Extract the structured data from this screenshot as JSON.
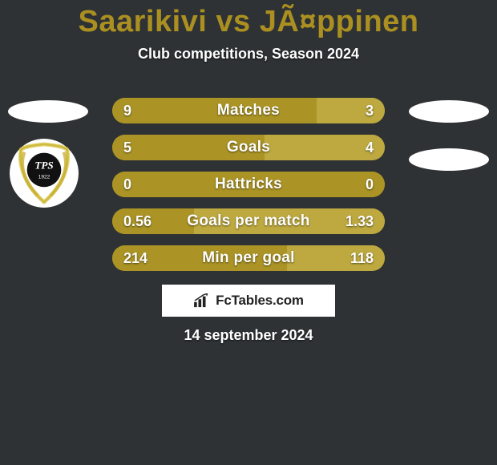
{
  "background_color": "#2e3234",
  "accent_color": "#ab9425",
  "right_fill_color": "#bda93f",
  "title": {
    "left": "Saarikivi",
    "vs": "vs",
    "right": "JÃ¤ppinen",
    "color": "#ab8f20",
    "fontsize": 38
  },
  "subtitle": "Club competitions, Season 2024",
  "bars": [
    {
      "label": "Matches",
      "left_value": "9",
      "right_value": "3",
      "left_pct": 75,
      "right_pct": 25,
      "left_color": "#ab9425",
      "right_color": "#bda93f"
    },
    {
      "label": "Goals",
      "left_value": "5",
      "right_value": "4",
      "left_pct": 56,
      "right_pct": 44,
      "left_color": "#ab9425",
      "right_color": "#bda93f"
    },
    {
      "label": "Hattricks",
      "left_value": "0",
      "right_value": "0",
      "left_pct": 100,
      "right_pct": 0,
      "left_color": "#ab9425",
      "right_color": "#bda93f"
    },
    {
      "label": "Goals per match",
      "left_value": "0.56",
      "right_value": "1.33",
      "left_pct": 30,
      "right_pct": 70,
      "left_color": "#ab9425",
      "right_color": "#bda93f"
    },
    {
      "label": "Min per goal",
      "left_value": "214",
      "right_value": "118",
      "left_pct": 64,
      "right_pct": 36,
      "left_color": "#ab9425",
      "right_color": "#bda93f"
    }
  ],
  "brand": "FcTables.com",
  "date": "14 september 2024",
  "left_crest_label": "TPS 1922"
}
